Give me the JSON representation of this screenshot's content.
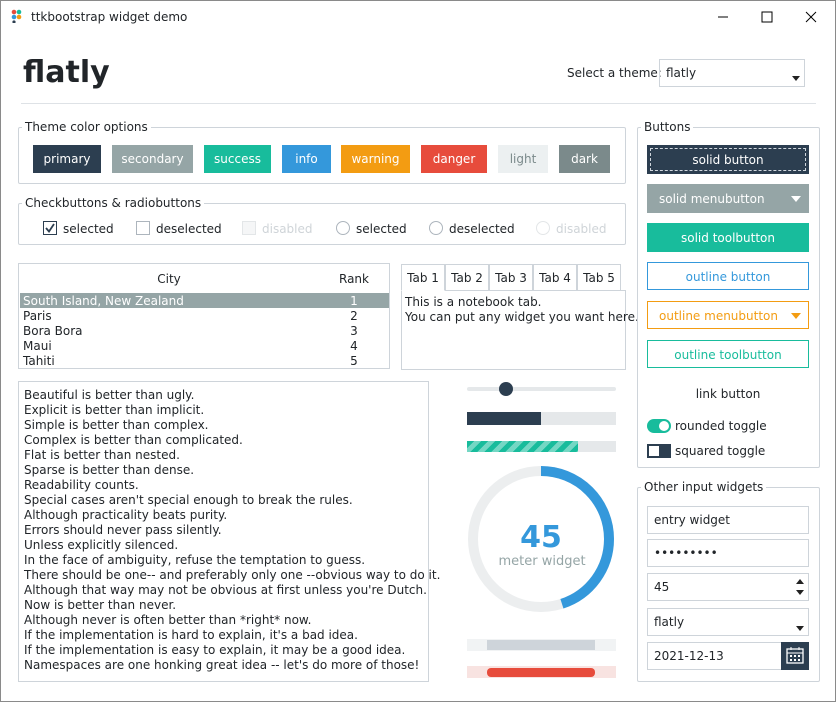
{
  "window": {
    "title": "ttkbootstrap widget demo"
  },
  "header": {
    "theme_name": "flatly",
    "theme_label": "Select a theme:",
    "theme_select": "flatly"
  },
  "theme_colors": {
    "title": "Theme color options",
    "buttons": [
      "primary",
      "secondary",
      "success",
      "info",
      "warning",
      "danger",
      "light",
      "dark"
    ]
  },
  "checks": {
    "title": "Checkbuttons & radiobuttons",
    "items": [
      "selected",
      "deselected",
      "disabled",
      "selected",
      "deselected",
      "disabled"
    ]
  },
  "table": {
    "columns": [
      "City",
      "Rank"
    ],
    "rows": [
      [
        "South Island, New Zealand",
        1
      ],
      [
        "Paris",
        2
      ],
      [
        "Bora Bora",
        3
      ],
      [
        "Maui",
        4
      ],
      [
        "Tahiti",
        5
      ]
    ]
  },
  "notebook": {
    "tabs": [
      "Tab 1",
      "Tab 2",
      "Tab 3",
      "Tab 4",
      "Tab 5"
    ],
    "text": [
      "This is a notebook tab.",
      "You can put any widget you want here."
    ]
  },
  "text_area": {
    "lines": [
      "Beautiful is better than ugly.",
      "Explicit is better than implicit.",
      "Simple is better than complex.",
      "Complex is better than complicated.",
      "Flat is better than nested.",
      "Sparse is better than dense.",
      "Readability counts.",
      "Special cases aren't special enough to break the rules.",
      "Although practicality beats purity.",
      "Errors should never pass silently.",
      "Unless explicitly silenced.",
      "In the face of ambiguity, refuse the temptation to guess.",
      "There should be one-- and preferably only one --obvious way to do it.",
      "Although that way may not be obvious at first unless you're Dutch.",
      "Now is better than never.",
      "Although never is often better than *right* now.",
      "If the implementation is hard to explain, it's a bad idea.",
      "If the implementation is easy to explain, it may be a good idea.",
      "Namespaces are one honking great idea -- let's do more of those!"
    ]
  },
  "meter": {
    "value": 45,
    "max": 100,
    "label": "meter widget"
  },
  "buttons": {
    "title": "Buttons",
    "solid_button": "solid button",
    "solid_menubutton": "solid menubutton",
    "solid_toolbutton": "solid toolbutton",
    "outline_button": "outline button",
    "outline_menubutton": "outline menubutton",
    "outline_toolbutton": "outline toolbutton",
    "link_button": "link button",
    "rounded_toggle": "rounded toggle",
    "squared_toggle": "squared toggle"
  },
  "inputs": {
    "title": "Other input widgets",
    "entry": "entry widget",
    "password": "•••••••••",
    "spinbox": "45",
    "combobox": "flatly",
    "date": "2021-12-13"
  }
}
